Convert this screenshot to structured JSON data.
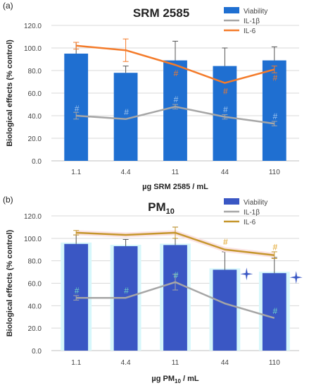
{
  "chart_data": [
    {
      "type": "bar",
      "panel_label": "(a)",
      "title": "SRM 2585",
      "xlabel": "µg SRM 2585 / mL",
      "ylabel": "Biological effects (% control)",
      "categories": [
        "1.1",
        "4.4",
        "11",
        "44",
        "110"
      ],
      "ylim": [
        0,
        120
      ],
      "yticks": [
        "0.0",
        "20.0",
        "40.0",
        "60.0",
        "80.0",
        "100.0",
        "120.0"
      ],
      "legend_position": "top-right",
      "series": [
        {
          "name": "Viability",
          "kind": "bar",
          "color": "#1f6fd1",
          "values": [
            95,
            78,
            89,
            84,
            89
          ],
          "error": [
            10,
            6,
            17,
            16,
            12
          ]
        },
        {
          "name": "IL-1β",
          "kind": "line",
          "color": "#a6a6a6",
          "values": [
            40,
            37,
            48,
            39,
            33
          ],
          "error": [
            3,
            0,
            2,
            2,
            2
          ]
        },
        {
          "name": "IL-6",
          "kind": "line",
          "color": "#f47b2a",
          "values": [
            102,
            98,
            85,
            69,
            81
          ],
          "error": [
            3,
            10,
            0,
            0,
            3
          ]
        }
      ],
      "annotations": [
        {
          "text": "#",
          "series": "IL-1β",
          "categories": [
            "1.1",
            "4.4",
            "11",
            "44",
            "110"
          ]
        },
        {
          "text": "#",
          "series": "IL-6",
          "categories": [
            "11",
            "44",
            "110"
          ]
        }
      ]
    },
    {
      "type": "bar",
      "panel_label": "(b)",
      "title": "PM",
      "title_subscript": "10",
      "xlabel_pre": "µg PM",
      "xlabel_sub": "10",
      "xlabel_post": " / mL",
      "ylabel": "Biological effects (% control)",
      "categories": [
        "1.1",
        "4.4",
        "11",
        "44",
        "110"
      ],
      "ylim": [
        0,
        120
      ],
      "yticks": [
        "0.0",
        "20.0",
        "40.0",
        "60.0",
        "80.0",
        "100.0",
        "120.0"
      ],
      "legend_position": "top-right",
      "series": [
        {
          "name": "Viability",
          "kind": "bar",
          "color": "#3a57c4",
          "values": [
            95,
            93,
            94,
            72,
            69
          ],
          "error": [
            8,
            6,
            16,
            16,
            14
          ]
        },
        {
          "name": "IL-1β",
          "kind": "line",
          "color": "#a6a6a6",
          "values": [
            47,
            47,
            61,
            42,
            29
          ],
          "error": [
            2,
            0,
            7,
            0,
            0
          ]
        },
        {
          "name": "IL-6",
          "kind": "line",
          "color": "#c5962b",
          "values": [
            105,
            103,
            105,
            90,
            85
          ],
          "error": [
            2,
            0,
            5,
            0,
            3
          ]
        }
      ],
      "annotations": [
        {
          "text": "#",
          "series": "IL-1β",
          "categories": [
            "1.1",
            "4.4",
            "11",
            "110"
          ]
        },
        {
          "text": "#",
          "series": "IL-6",
          "categories": [
            "44",
            "110"
          ]
        },
        {
          "text": "star",
          "series": "Viability",
          "categories": [
            "44",
            "110"
          ]
        }
      ]
    }
  ]
}
